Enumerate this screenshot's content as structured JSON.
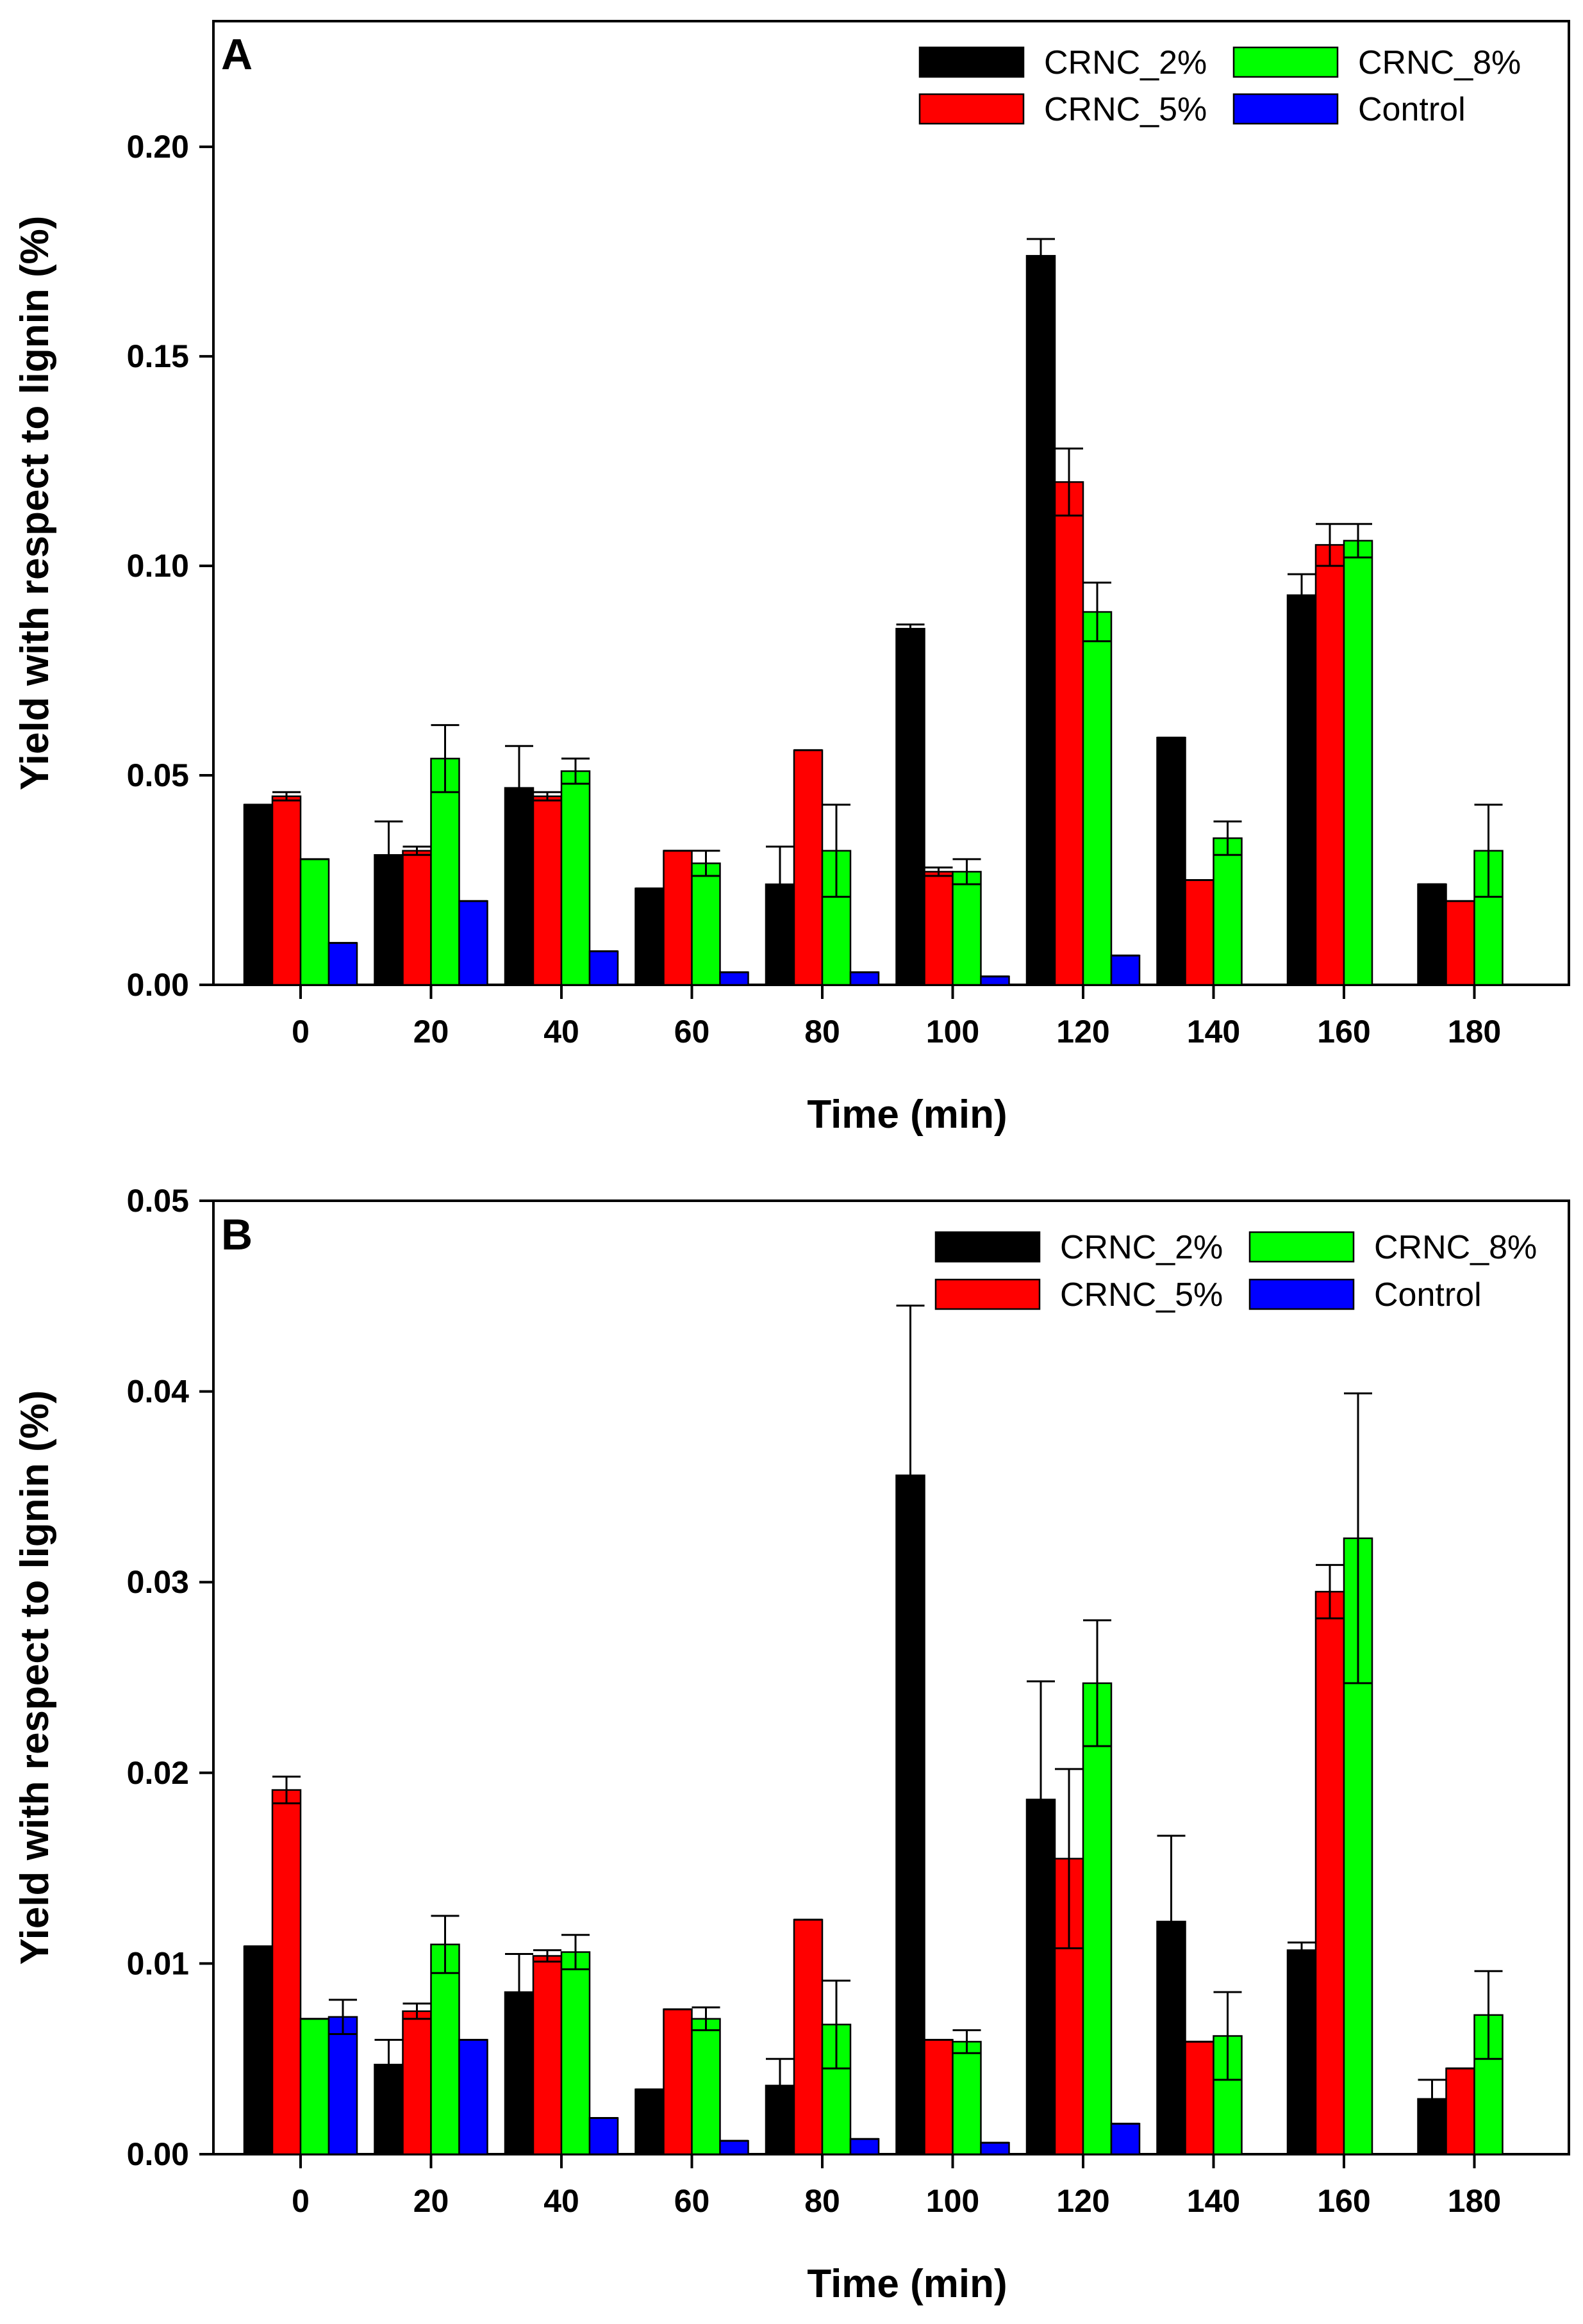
{
  "figure": {
    "background": "#ffffff"
  },
  "series_colors": {
    "CRNC_2%": "#000000",
    "CRNC_5%": "#ff0000",
    "CRNC_8%": "#00ff00",
    "Control": "#0000ff"
  },
  "chart_data": [
    {
      "id": "A",
      "panel_label": "A",
      "type": "bar",
      "title": "",
      "xlabel": "Time (min)",
      "ylabel": "Yield with respect to lignin (%)",
      "categories": [
        "0",
        "20",
        "40",
        "60",
        "80",
        "100",
        "120",
        "140",
        "160",
        "180"
      ],
      "ylim": [
        0,
        0.23
      ],
      "yticks": [
        0.0,
        0.05,
        0.1,
        0.15,
        0.2
      ],
      "ytick_labels": [
        "0.00",
        "0.05",
        "0.10",
        "0.15",
        "0.20"
      ],
      "grid": false,
      "legend_position": "top-right",
      "legend_order": [
        "CRNC_2%",
        "CRNC_8%",
        "CRNC_5%",
        "Control"
      ],
      "series": [
        {
          "name": "CRNC_2%",
          "values": [
            0.043,
            0.031,
            0.047,
            0.023,
            0.024,
            0.085,
            0.174,
            0.059,
            0.093,
            0.024
          ],
          "errors": [
            0.0,
            0.008,
            0.01,
            0.0,
            0.009,
            0.001,
            0.004,
            0.0,
            0.005,
            0.0
          ]
        },
        {
          "name": "CRNC_5%",
          "values": [
            0.045,
            0.032,
            0.045,
            0.032,
            0.056,
            0.027,
            0.12,
            0.025,
            0.105,
            0.02
          ],
          "errors": [
            0.001,
            0.001,
            0.001,
            0.0,
            0.0,
            0.001,
            0.008,
            0.0,
            0.005,
            0.0
          ]
        },
        {
          "name": "CRNC_8%",
          "values": [
            0.03,
            0.054,
            0.051,
            0.029,
            0.032,
            0.027,
            0.089,
            0.035,
            0.106,
            0.032
          ],
          "errors": [
            0.0,
            0.008,
            0.003,
            0.003,
            0.011,
            0.003,
            0.007,
            0.004,
            0.004,
            0.011
          ]
        },
        {
          "name": "Control",
          "values": [
            0.01,
            0.02,
            0.008,
            0.003,
            0.003,
            0.002,
            0.007,
            null,
            null,
            null
          ],
          "errors": [
            0,
            0,
            0,
            0,
            0,
            0,
            0,
            0,
            0,
            0
          ]
        }
      ]
    },
    {
      "id": "B",
      "panel_label": "B",
      "type": "bar",
      "title": "",
      "xlabel": "Time (min)",
      "ylabel": "Yield with respect to lignin (%)",
      "categories": [
        "0",
        "20",
        "40",
        "60",
        "80",
        "100",
        "120",
        "140",
        "160",
        "180"
      ],
      "ylim": [
        0,
        0.05
      ],
      "yticks": [
        0.0,
        0.01,
        0.02,
        0.03,
        0.04,
        0.05
      ],
      "ytick_labels": [
        "0.00",
        "0.01",
        "0.02",
        "0.03",
        "0.04",
        "0.05"
      ],
      "grid": false,
      "legend_position": "top-right",
      "legend_order": [
        "CRNC_2%",
        "CRNC_8%",
        "CRNC_5%",
        "Control"
      ],
      "series": [
        {
          "name": "CRNC_2%",
          "values": [
            0.0109,
            0.0047,
            0.0085,
            0.0034,
            0.0036,
            0.0356,
            0.0186,
            0.0122,
            0.0107,
            0.0029
          ],
          "errors": [
            0.0,
            0.0013,
            0.002,
            0.0,
            0.0014,
            0.0089,
            0.0062,
            0.0045,
            0.0004,
            0.001
          ]
        },
        {
          "name": "CRNC_5%",
          "values": [
            0.0191,
            0.0075,
            0.0104,
            0.0076,
            0.0123,
            0.006,
            0.0155,
            0.0059,
            0.0295,
            0.0045
          ],
          "errors": [
            0.0007,
            0.0004,
            0.0003,
            0.0,
            0.0,
            0.0,
            0.0047,
            0.0,
            0.0014,
            0.0
          ]
        },
        {
          "name": "CRNC_8%",
          "values": [
            0.0071,
            0.011,
            0.0106,
            0.0071,
            0.0068,
            0.0059,
            0.0247,
            0.0062,
            0.0323,
            0.0073
          ],
          "errors": [
            0.0,
            0.0015,
            0.0009,
            0.0006,
            0.0023,
            0.0006,
            0.0033,
            0.0023,
            0.0076,
            0.0023
          ]
        },
        {
          "name": "Control",
          "values": [
            0.0072,
            0.006,
            0.0019,
            0.0007,
            0.0008,
            0.0006,
            0.0016,
            null,
            null,
            null
          ],
          "errors": [
            0.0009,
            0.0,
            0.0,
            0.0,
            0.0,
            0.0,
            0.0,
            0,
            0,
            0
          ]
        }
      ]
    }
  ]
}
